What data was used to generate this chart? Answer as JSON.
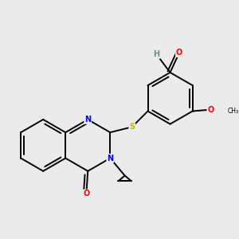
{
  "background_color": "#ebebeb",
  "bond_color": "#000000",
  "atom_colors": {
    "N": "#0000ff",
    "O": "#ff0000",
    "S": "#bbbb00",
    "H": "#6b8e8e",
    "C": "#000000"
  },
  "figsize": [
    3.0,
    3.0
  ],
  "dpi": 100,
  "lw": 1.4,
  "fs": 7.0
}
